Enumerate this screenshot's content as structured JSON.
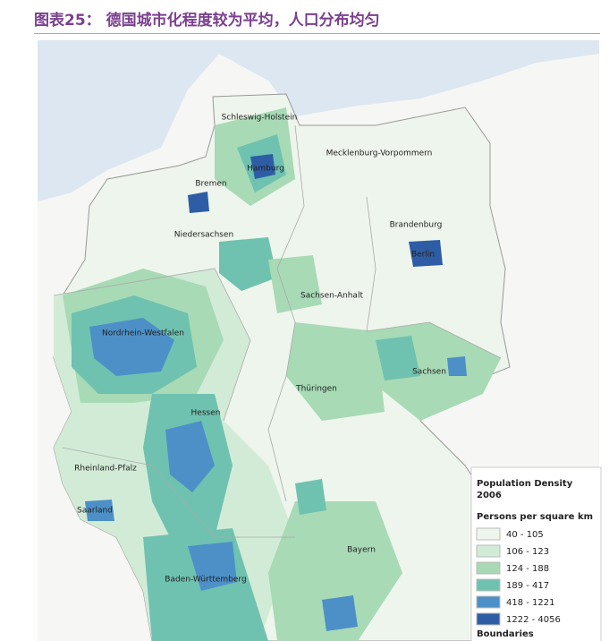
{
  "title": "图表25： 德国城市化程度较为平均，人口分布均匀",
  "map": {
    "labels": [
      "Schleswig-Holstein",
      "Hamburg",
      "Mecklenburg-Vorpommern",
      "Bremen",
      "Brandenburg",
      "Berlin",
      "Niedersachsen",
      "Sachsen-Anhalt",
      "Nordrhein-Westfalen",
      "Sachsen",
      "Thüringen",
      "Hessen",
      "Rheinland-Pfalz",
      "Saarland",
      "Bayern",
      "Baden-Württemberg"
    ]
  },
  "legend": {
    "title": "Population Density 2006",
    "subtitle": "Persons per square km",
    "items": [
      {
        "label": "40 - 105",
        "color": "#eef5ec"
      },
      {
        "label": "106 - 123",
        "color": "#d2ebd7"
      },
      {
        "label": "124 - 188",
        "color": "#a7dab5"
      },
      {
        "label": "189 - 417",
        "color": "#6fc2b0"
      },
      {
        "label": "418 - 1221",
        "color": "#4d90c8"
      },
      {
        "label": "1222 - 4056",
        "color": "#2e5da6"
      }
    ],
    "boundaries": "Boundaries"
  }
}
